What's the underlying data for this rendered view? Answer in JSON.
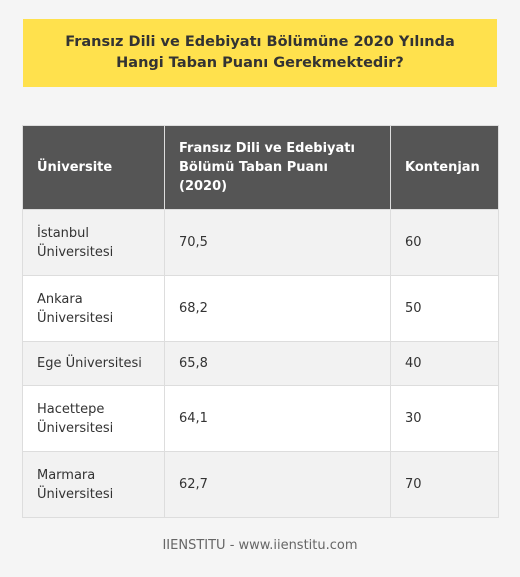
{
  "title": "Fransız Dili ve Edebiyatı Bölümüne 2020 Yılında Hangi Taban Puanı Gerekmektedir?",
  "table": {
    "headers": [
      "Üniversite",
      "Fransız Dili ve Edebiyatı Bölümü Taban Puanı (2020)",
      "Kontenjan"
    ],
    "rows": [
      [
        "İstanbul Üniversitesi",
        "70,5",
        "60"
      ],
      [
        "Ankara Üniversitesi",
        "68,2",
        "50"
      ],
      [
        "Ege Üniversitesi",
        "65,8",
        "40"
      ],
      [
        "Hacettepe Üniversitesi",
        "64,1",
        "30"
      ],
      [
        "Marmara Üniversitesi",
        "62,7",
        "70"
      ]
    ]
  },
  "footer": "IIENSTITU - www.iienstitu.com",
  "colors": {
    "banner": "#ffe14d",
    "header_bg": "#555555",
    "row_alt": "#f2f2f2"
  }
}
